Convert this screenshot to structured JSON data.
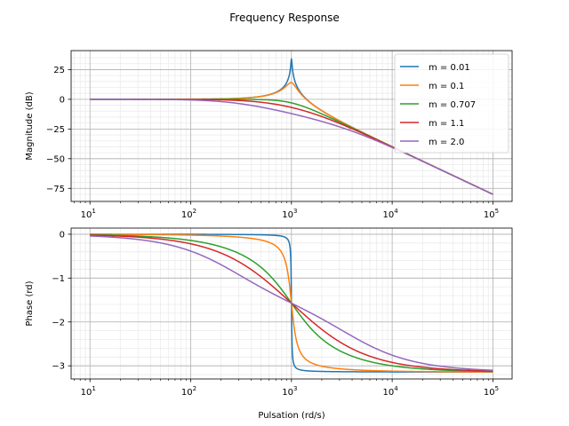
{
  "figure_title": "Frequency Response",
  "colors": {
    "m_0_01": "#1f77b4",
    "m_0_1": "#ff7f0e",
    "m_0_707": "#2ca02c",
    "m_1_1": "#d62728",
    "m_2_0": "#9467bd"
  },
  "chart_data": [
    {
      "type": "line",
      "title": "",
      "xlabel": "",
      "ylabel": "Magnitude (dB)",
      "xscale": "log",
      "xlim": [
        6.5,
        155000
      ],
      "ylim": [
        -86,
        41
      ],
      "xticks": [
        10,
        100,
        1000,
        10000,
        100000
      ],
      "xtick_labels": [
        {
          "base": "10",
          "exp": "1"
        },
        {
          "base": "10",
          "exp": "2"
        },
        {
          "base": "10",
          "exp": "3"
        },
        {
          "base": "10",
          "exp": "4"
        },
        {
          "base": "10",
          "exp": "5"
        }
      ],
      "yticks": [
        25,
        0,
        -25,
        -50,
        -75
      ],
      "ytick_labels": [
        "25",
        "0",
        "−25",
        "−50",
        "−75"
      ],
      "grid": "major and minor",
      "legend": "top-right",
      "natural_frequency": 1000,
      "x_range": [
        10,
        100000
      ],
      "series": [
        {
          "name": "m = 0.01",
          "m": 0.01,
          "color_key": "m_0_01"
        },
        {
          "name": "m = 0.1",
          "m": 0.1,
          "color_key": "m_0_1"
        },
        {
          "name": "m = 0.707",
          "m": 0.707,
          "color_key": "m_0_707"
        },
        {
          "name": "m = 1.1",
          "m": 1.1,
          "color_key": "m_1_1"
        },
        {
          "name": "m = 2.0",
          "m": 2.0,
          "color_key": "m_2_0"
        }
      ]
    },
    {
      "type": "line",
      "title": "",
      "xlabel": "Pulsation (rd/s)",
      "ylabel": "Phase (rd)",
      "xscale": "log",
      "xlim": [
        6.5,
        155000
      ],
      "ylim": [
        -3.3,
        0.14
      ],
      "xticks": [
        10,
        100,
        1000,
        10000,
        100000
      ],
      "xtick_labels": [
        {
          "base": "10",
          "exp": "1"
        },
        {
          "base": "10",
          "exp": "2"
        },
        {
          "base": "10",
          "exp": "3"
        },
        {
          "base": "10",
          "exp": "4"
        },
        {
          "base": "10",
          "exp": "5"
        }
      ],
      "yticks": [
        0,
        -1,
        -2,
        -3
      ],
      "ytick_labels": [
        "0",
        "−1",
        "−2",
        "−3"
      ],
      "grid": "major and minor",
      "natural_frequency": 1000,
      "x_range": [
        10,
        100000
      ],
      "series": [
        {
          "name": "m = 0.01",
          "m": 0.01,
          "color_key": "m_0_01"
        },
        {
          "name": "m = 0.1",
          "m": 0.1,
          "color_key": "m_0_1"
        },
        {
          "name": "m = 0.707",
          "m": 0.707,
          "color_key": "m_0_707"
        },
        {
          "name": "m = 1.1",
          "m": 1.1,
          "color_key": "m_1_1"
        },
        {
          "name": "m = 2.0",
          "m": 2.0,
          "color_key": "m_2_0"
        }
      ]
    }
  ]
}
